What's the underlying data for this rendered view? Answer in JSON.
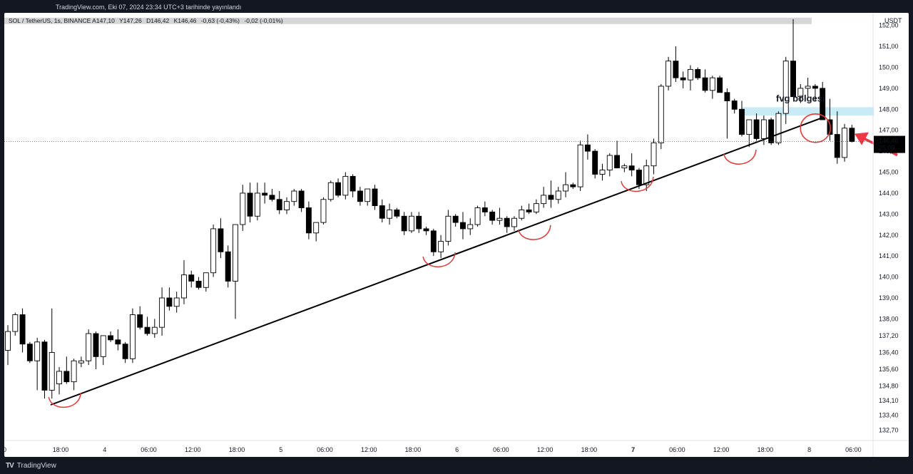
{
  "topbar": {
    "published": "TradingView.com, Eki 07, 2024 23:34 UTC+3 tarihinde yayınlandı"
  },
  "legend": {
    "symbol": "SOL / TetherUS, 1s, BINANCE",
    "open_label": "A",
    "open": "147,10",
    "high_label": "Y",
    "high": "147,26",
    "low_label": "D",
    "low": "146,42",
    "close_label": "K",
    "close": "146,46",
    "change": "-0,63 (-0,43%)",
    "volume_change": "-0,02 (-0,01%)"
  },
  "brand": {
    "name": "TradingView",
    "logo_text": "TV"
  },
  "colors": {
    "up_fill": "#ffffff",
    "down_fill": "#000000",
    "candle_stroke": "#000000",
    "annotation": "#e03b3b",
    "arrow": "#f23645",
    "fvg_zone": "#bfe7f4",
    "trendline": "#000000"
  },
  "chart_data": {
    "type": "candlestick",
    "currency": "USDT",
    "ylim": [
      132.2,
      152.6
    ],
    "y_ticks": [
      "132,70",
      "133,40",
      "134,10",
      "134,80",
      "135,60",
      "136,40",
      "137,20",
      "138,00",
      "139,00",
      "140,00",
      "141,00",
      "142,00",
      "143,00",
      "144,00",
      "145,00",
      "146,00",
      "147,00",
      "148,00",
      "149,00",
      "150,00",
      "151,00",
      "152,00"
    ],
    "y_tick_values": [
      132.7,
      133.4,
      134.1,
      134.8,
      135.6,
      136.4,
      137.2,
      138.0,
      139.0,
      140.0,
      141.0,
      142.0,
      143.0,
      144.0,
      145.0,
      146.0,
      147.0,
      148.0,
      149.0,
      150.0,
      151.0,
      152.0
    ],
    "x_ticks": [
      {
        "label": ":00",
        "i": -1
      },
      {
        "label": "18:00",
        "i": 7
      },
      {
        "label": "4",
        "i": 13
      },
      {
        "label": "06:00",
        "i": 19
      },
      {
        "label": "12:00",
        "i": 25
      },
      {
        "label": "18:00",
        "i": 31
      },
      {
        "label": "5",
        "i": 37
      },
      {
        "label": "06:00",
        "i": 43
      },
      {
        "label": "12:00",
        "i": 49
      },
      {
        "label": "18:00",
        "i": 55
      },
      {
        "label": "6",
        "i": 61
      },
      {
        "label": "06:00",
        "i": 67
      },
      {
        "label": "12:00",
        "i": 73
      },
      {
        "label": "18:00",
        "i": 79
      },
      {
        "label": "7",
        "i": 85
      },
      {
        "label": "06:00",
        "i": 91
      },
      {
        "label": "12:00",
        "i": 97
      },
      {
        "label": "18:00",
        "i": 103
      },
      {
        "label": "8",
        "i": 109
      },
      {
        "label": "06:00",
        "i": 115
      }
    ],
    "candles": [
      [
        136.5,
        137.7,
        135.8,
        137.4
      ],
      [
        137.4,
        138.3,
        137.2,
        138.2
      ],
      [
        138.2,
        138.5,
        136.4,
        136.8
      ],
      [
        136.8,
        136.9,
        135.9,
        136.0
      ],
      [
        136.0,
        137.1,
        134.6,
        136.9
      ],
      [
        136.9,
        137.0,
        134.2,
        134.6
      ],
      [
        134.6,
        138.5,
        134.2,
        136.4
      ],
      [
        134.9,
        135.7,
        134.4,
        135.5
      ],
      [
        135.5,
        136.2,
        134.9,
        135.0
      ],
      [
        135.0,
        136.1,
        134.6,
        136.0
      ],
      [
        135.9,
        136.2,
        135.7,
        136.0
      ],
      [
        136.0,
        137.5,
        135.8,
        137.3
      ],
      [
        137.3,
        137.4,
        135.6,
        136.2
      ],
      [
        136.2,
        137.2,
        135.8,
        137.2
      ],
      [
        137.2,
        137.4,
        136.9,
        137.0
      ],
      [
        137.0,
        137.5,
        136.5,
        136.8
      ],
      [
        136.8,
        136.9,
        135.9,
        136.1
      ],
      [
        136.1,
        138.5,
        135.9,
        138.2
      ],
      [
        138.2,
        138.6,
        137.5,
        137.6
      ],
      [
        137.6,
        138.1,
        137.2,
        137.3
      ],
      [
        137.3,
        138.0,
        137.1,
        137.6
      ],
      [
        137.6,
        139.5,
        137.2,
        139.0
      ],
      [
        139.0,
        139.5,
        138.4,
        138.6
      ],
      [
        138.6,
        139.3,
        138.3,
        139.0
      ],
      [
        139.0,
        140.8,
        138.7,
        140.1
      ],
      [
        140.1,
        140.3,
        139.5,
        139.8
      ],
      [
        139.8,
        140.0,
        139.4,
        139.5
      ],
      [
        139.5,
        140.2,
        139.3,
        140.2
      ],
      [
        140.2,
        142.5,
        140.0,
        142.3
      ],
      [
        142.3,
        142.8,
        140.9,
        141.2
      ],
      [
        141.2,
        141.5,
        139.5,
        139.8
      ],
      [
        139.8,
        142.5,
        138.0,
        142.5
      ],
      [
        142.5,
        144.4,
        142.2,
        144.0
      ],
      [
        144.0,
        144.5,
        142.6,
        142.9
      ],
      [
        142.9,
        144.5,
        142.7,
        144.0
      ],
      [
        144.0,
        144.5,
        143.5,
        143.9
      ],
      [
        143.9,
        144.2,
        143.6,
        143.7
      ],
      [
        143.7,
        144.1,
        143.0,
        143.2
      ],
      [
        143.2,
        143.8,
        143.0,
        143.6
      ],
      [
        143.6,
        144.2,
        143.4,
        144.1
      ],
      [
        144.1,
        144.2,
        143.1,
        143.3
      ],
      [
        143.3,
        143.6,
        141.8,
        142.1
      ],
      [
        142.1,
        142.4,
        141.7,
        142.6
      ],
      [
        142.6,
        143.8,
        142.5,
        143.7
      ],
      [
        143.7,
        144.6,
        143.6,
        144.5
      ],
      [
        144.5,
        144.7,
        143.8,
        143.9
      ],
      [
        143.9,
        145.0,
        143.7,
        144.8
      ],
      [
        144.8,
        144.9,
        143.8,
        144.1
      ],
      [
        144.1,
        144.3,
        143.4,
        143.6
      ],
      [
        143.6,
        144.2,
        143.4,
        144.2
      ],
      [
        144.2,
        144.4,
        143.2,
        143.4
      ],
      [
        143.4,
        143.7,
        142.6,
        142.8
      ],
      [
        142.8,
        143.5,
        142.5,
        143.2
      ],
      [
        143.2,
        143.3,
        142.8,
        142.9
      ],
      [
        142.9,
        143.1,
        142.0,
        142.2
      ],
      [
        142.2,
        143.1,
        142.1,
        142.9
      ],
      [
        142.9,
        143.1,
        142.1,
        142.3
      ],
      [
        142.3,
        142.4,
        142.0,
        142.2
      ],
      [
        142.2,
        142.3,
        141.0,
        141.2
      ],
      [
        141.2,
        142.0,
        140.9,
        141.7
      ],
      [
        141.7,
        143.2,
        141.5,
        142.9
      ],
      [
        142.9,
        143.0,
        142.4,
        142.6
      ],
      [
        142.6,
        143.1,
        141.8,
        142.3
      ],
      [
        142.3,
        142.8,
        142.0,
        142.5
      ],
      [
        142.5,
        143.4,
        142.4,
        143.3
      ],
      [
        143.3,
        143.6,
        142.9,
        143.1
      ],
      [
        143.1,
        143.2,
        142.5,
        142.7
      ],
      [
        142.7,
        143.3,
        142.5,
        142.8
      ],
      [
        142.8,
        142.9,
        142.1,
        142.4
      ],
      [
        142.4,
        142.9,
        142.2,
        142.8
      ],
      [
        142.8,
        143.4,
        142.7,
        143.2
      ],
      [
        143.2,
        143.5,
        143.0,
        143.1
      ],
      [
        143.1,
        143.7,
        143.0,
        143.5
      ],
      [
        143.5,
        144.3,
        143.3,
        143.9
      ],
      [
        143.9,
        144.6,
        143.3,
        143.7
      ],
      [
        143.7,
        144.3,
        143.5,
        144.1
      ],
      [
        144.1,
        145.0,
        143.8,
        144.4
      ],
      [
        144.4,
        144.5,
        144.2,
        144.3
      ],
      [
        144.3,
        146.5,
        144.1,
        146.3
      ],
      [
        146.3,
        146.8,
        145.6,
        146.0
      ],
      [
        146.0,
        146.1,
        144.7,
        144.9
      ],
      [
        144.9,
        145.4,
        144.6,
        145.1
      ],
      [
        145.1,
        145.9,
        144.8,
        145.8
      ],
      [
        145.8,
        146.5,
        145.2,
        145.2
      ],
      [
        145.2,
        145.4,
        145.0,
        145.3
      ],
      [
        145.3,
        145.9,
        144.8,
        145.1
      ],
      [
        145.1,
        145.2,
        144.2,
        144.4
      ],
      [
        144.4,
        145.6,
        144.1,
        145.3
      ],
      [
        145.3,
        146.6,
        144.9,
        146.4
      ],
      [
        146.4,
        149.2,
        146.1,
        149.1
      ],
      [
        149.1,
        150.5,
        148.9,
        150.3
      ],
      [
        150.3,
        151.0,
        149.3,
        149.5
      ],
      [
        149.5,
        149.8,
        149.0,
        149.4
      ],
      [
        149.4,
        150.1,
        148.9,
        149.9
      ],
      [
        149.9,
        150.0,
        149.4,
        149.5
      ],
      [
        149.5,
        149.9,
        148.8,
        148.9
      ],
      [
        148.9,
        149.6,
        148.5,
        149.5
      ],
      [
        149.5,
        149.6,
        148.8,
        148.8
      ],
      [
        148.8,
        149.0,
        146.6,
        148.4
      ],
      [
        148.4,
        148.5,
        147.8,
        148.0
      ],
      [
        148.0,
        148.4,
        146.7,
        146.8
      ],
      [
        146.8,
        147.5,
        146.2,
        147.5
      ],
      [
        147.5,
        147.8,
        146.5,
        146.6
      ],
      [
        146.6,
        147.7,
        146.3,
        147.5
      ],
      [
        147.5,
        147.6,
        146.3,
        146.4
      ],
      [
        146.4,
        147.9,
        146.3,
        147.8
      ],
      [
        147.8,
        150.5,
        147.3,
        150.3
      ],
      [
        150.3,
        152.3,
        148.6,
        148.6
      ],
      [
        148.6,
        149.2,
        148.3,
        149.0
      ],
      [
        149.0,
        149.5,
        148.6,
        149.1
      ],
      [
        149.1,
        149.2,
        148.4,
        149.0
      ],
      [
        149.0,
        149.3,
        147.5,
        147.5
      ],
      [
        147.5,
        148.5,
        146.5,
        146.8
      ],
      [
        146.8,
        147.9,
        145.4,
        145.7
      ],
      [
        145.7,
        147.3,
        145.5,
        147.1
      ],
      [
        147.1,
        147.26,
        146.42,
        146.46
      ]
    ],
    "last_price": {
      "value": 146.46,
      "label": "146,46",
      "countdown": "25:09"
    },
    "annotations": {
      "fvg_label": "fvg bölgesi",
      "fvg_zone": {
        "i_from": 100,
        "i_to": 118,
        "y_from": 147.7,
        "y_to": 148.1
      },
      "trendline": {
        "i_from": 0,
        "y_from": 133.9,
        "i_to": 111,
        "y_to": 147.6
      },
      "circle_marks": [
        {
          "i": 8,
          "y": 134.0
        },
        {
          "i": 59,
          "y": 140.7
        },
        {
          "i": 72,
          "y": 142.0
        },
        {
          "i": 86,
          "y": 144.3
        },
        {
          "i": 100,
          "y": 145.6
        }
      ],
      "red_circle": {
        "i": 111,
        "y": 147.1
      },
      "arrow_target": {
        "i": 114,
        "y": 146.9
      }
    },
    "top_bar_band": {
      "y": 152.2
    }
  }
}
